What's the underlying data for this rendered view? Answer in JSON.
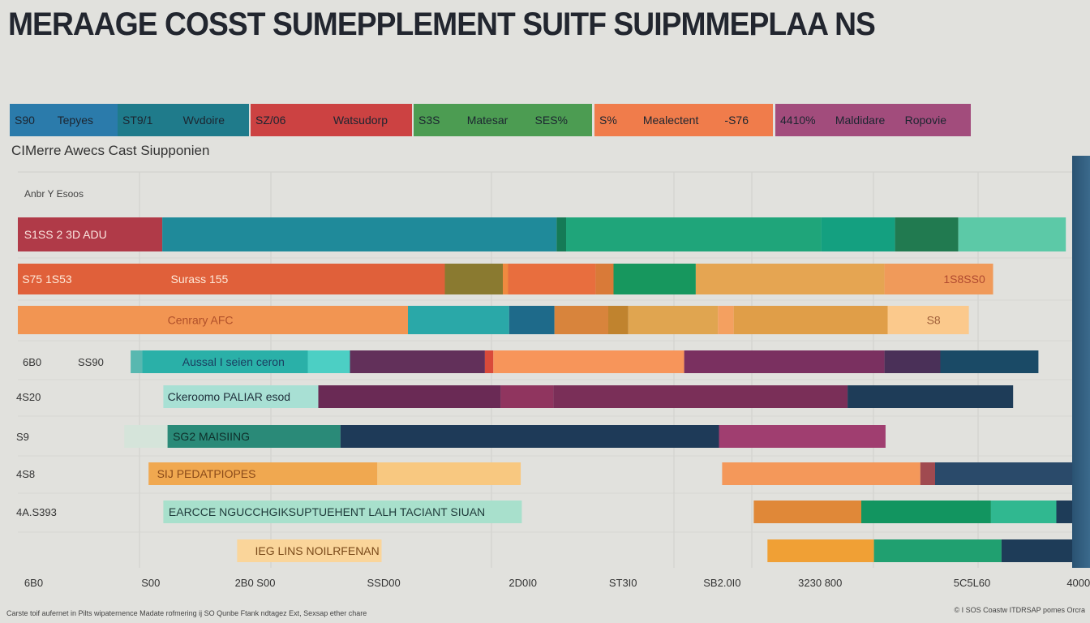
{
  "title": "MERAAGE COSST SUMEPPLEMENT  SUITF SUIPMMEPLAA NS",
  "legend": [
    {
      "color": "#2b7bab",
      "texts": [
        "S90",
        "Tepyes"
      ]
    },
    {
      "color": "#1f7b8b",
      "texts": [
        "ST9/1",
        "Wvdoire"
      ]
    },
    {
      "color": "#cc4242",
      "texts": [
        "SZ/06",
        "Watsudorp"
      ]
    },
    {
      "color": "#4c9c52",
      "texts": [
        "S3S",
        "Matesar",
        "SES%"
      ]
    },
    {
      "color": "#f07c4b",
      "texts": [
        "S%",
        "Mealectent",
        "-S76"
      ]
    },
    {
      "color": "#a24c7c",
      "texts": [
        "4410%",
        "Maldidare",
        "Ropovie"
      ]
    }
  ],
  "subtitle": "CIMerre Awecs Cast Siupponien",
  "footnote": "Carste toif aufernet in Pilts wipaternence Madate rofmering ij SO Qunbe Ftank ndtagez Ext, Sexsap ether chare",
  "credit": "© I SOS Coastw ITDRSAP pomes Orcra",
  "chart_data": {
    "type": "bar",
    "orientation": "horizontal",
    "stacked": true,
    "ylabel": "Anbr Y Esoos",
    "xlim": [
      0,
      100
    ],
    "grid": true,
    "x_ticks": [
      {
        "label": "6B0",
        "value": 1.5
      },
      {
        "label": "S00",
        "value": 12.6
      },
      {
        "label": "2B0 S00",
        "value": 22.5
      },
      {
        "label": "SSD00",
        "value": 34.7
      },
      {
        "label": "2D0I0",
        "value": 47.9
      },
      {
        "label": "ST3I0",
        "value": 57.4
      },
      {
        "label": "SB2.0I0",
        "value": 66.8
      },
      {
        "label": "3230 800",
        "value": 76.1
      },
      {
        "label": "5C5L60",
        "value": 90.5
      },
      {
        "label": "4000",
        "value": 100.6
      }
    ],
    "rows": [
      {
        "row_labels": [],
        "segments": [
          [
            0,
            13.7,
            "#b03a48"
          ],
          [
            13.7,
            51.1,
            "#1f8a9a"
          ],
          [
            51.1,
            52,
            "#157a56"
          ],
          [
            52,
            76.2,
            "#1fa57a"
          ],
          [
            76.2,
            83.2,
            "#14a080"
          ],
          [
            83.2,
            89.2,
            "#217a50"
          ],
          [
            89.2,
            99.4,
            "#5cc9a7"
          ]
        ],
        "labels": [
          {
            "text": "S1SS 2 3D ADU",
            "at": 0.6,
            "color": "#fbe6e0"
          }
        ]
      },
      {
        "row_labels": [],
        "segments": [
          [
            0,
            40.5,
            "#e0603a"
          ],
          [
            40.5,
            46,
            "#8a7a30"
          ],
          [
            46,
            46.5,
            "#f08a40"
          ],
          [
            46.5,
            54.8,
            "#e86e3e"
          ],
          [
            54.8,
            56.5,
            "#d97a38"
          ],
          [
            56.5,
            64.3,
            "#17975e"
          ],
          [
            64.3,
            82.2,
            "#e5a552"
          ],
          [
            82.2,
            92.5,
            "#f09a5a"
          ]
        ],
        "labels": [
          {
            "text": "S75 1S53",
            "at": 0.4,
            "color": "#fde8d8"
          },
          {
            "text": "Surass 155",
            "at": 14.5,
            "color": "#fde8d8"
          },
          {
            "text": "1S8SS0",
            "at": 87.8,
            "color": "#b04a30"
          }
        ]
      },
      {
        "row_labels": [],
        "segments": [
          [
            0,
            37,
            "#f29552"
          ],
          [
            37,
            46.6,
            "#2aa8a8"
          ],
          [
            46.6,
            50.9,
            "#1e6a8a"
          ],
          [
            50.9,
            56,
            "#d8843c"
          ],
          [
            56,
            57.9,
            "#c0832e"
          ],
          [
            57.9,
            66.4,
            "#e0a550"
          ],
          [
            66.4,
            67.9,
            "#f4a060"
          ],
          [
            67.9,
            82.5,
            "#e09e48"
          ],
          [
            82.5,
            90.2,
            "#fbc98c"
          ]
        ],
        "labels": [
          {
            "text": "Cenrary AFC",
            "at": 14.2,
            "color": "#b0502a"
          },
          {
            "text": "S8",
            "at": 86.2,
            "color": "#a0603a"
          }
        ]
      },
      {
        "row_labels": [
          "6B0",
          "SS90"
        ],
        "segments": [
          [
            10.7,
            11.8,
            "#58b8b0"
          ],
          [
            11.8,
            27.5,
            "#2ab0a8"
          ],
          [
            27.5,
            31.5,
            "#4ccfc4"
          ],
          [
            31.5,
            44.3,
            "#62305a"
          ],
          [
            44.3,
            45.1,
            "#d94a3a"
          ],
          [
            45.1,
            63.2,
            "#f7955a"
          ],
          [
            63.2,
            82.2,
            "#7a3060"
          ],
          [
            82.2,
            87.5,
            "#4a3058"
          ],
          [
            87.5,
            96.8,
            "#1a4a66"
          ]
        ],
        "labels": [
          {
            "text": "Aussal I seien ceron",
            "at": 15.6,
            "color": "#1a3e60"
          }
        ]
      },
      {
        "row_labels": [
          "4S20"
        ],
        "segments": [
          [
            13.8,
            28.5,
            "#a8e0d4"
          ],
          [
            28.5,
            45.8,
            "#6a2a55"
          ],
          [
            45.8,
            50.8,
            "#90355f"
          ],
          [
            50.8,
            78.7,
            "#7a2f58"
          ],
          [
            78.7,
            94.4,
            "#1e3c58"
          ]
        ],
        "labels": [
          {
            "text": "Ckeroomo PALIAR esod",
            "at": 14.2,
            "color": "#1e2e3a"
          }
        ]
      },
      {
        "row_labels": [
          "S9"
        ],
        "segments": [
          [
            10.1,
            14.2,
            "#d5e4da"
          ],
          [
            14.2,
            30.6,
            "#2a8a78"
          ],
          [
            30.6,
            66.5,
            "#1e3a58"
          ],
          [
            66.5,
            82.3,
            "#a03e70"
          ]
        ],
        "labels": [
          {
            "text": "SG2 MAISIING",
            "at": 14.7,
            "color": "#0e2e2a"
          }
        ]
      },
      {
        "row_labels": [
          "4S8"
        ],
        "segments": [
          [
            12.4,
            34.1,
            "#f0a850"
          ],
          [
            34.1,
            47.7,
            "#f8c880"
          ],
          [
            66.8,
            85.6,
            "#f4985a"
          ],
          [
            85.6,
            87,
            "#a04a50"
          ],
          [
            87,
            100,
            "#2a4a6a"
          ]
        ],
        "labels": [
          {
            "text": "SIJ PEDATPIOPES",
            "at": 13.2,
            "color": "#8a4a1a"
          }
        ]
      },
      {
        "row_labels": [
          "4A.S393"
        ],
        "segments": [
          [
            13.8,
            47.8,
            "#a8e0cc"
          ],
          [
            69.8,
            80,
            "#e08838"
          ],
          [
            80,
            92.3,
            "#129560"
          ],
          [
            92.3,
            98.5,
            "#30b890"
          ],
          [
            98.5,
            100,
            "#1e3c58"
          ]
        ],
        "labels": [
          {
            "text": "EARCCE NGUCCHGIKSUPTUEHENT LALH TACIANT SIUAN",
            "at": 14.3,
            "color": "#1e3a3a"
          }
        ]
      },
      {
        "row_labels": [],
        "segments": [
          [
            20.8,
            34.5,
            "#fad59a"
          ],
          [
            71.1,
            81.2,
            "#f0a035"
          ],
          [
            81.2,
            93.3,
            "#20a070"
          ],
          [
            93.3,
            100,
            "#1e3c58"
          ]
        ],
        "labels": [
          {
            "text": "IEG LINS NOILRFENAN",
            "at": 22.5,
            "color": "#7a4a1a"
          }
        ]
      }
    ]
  }
}
